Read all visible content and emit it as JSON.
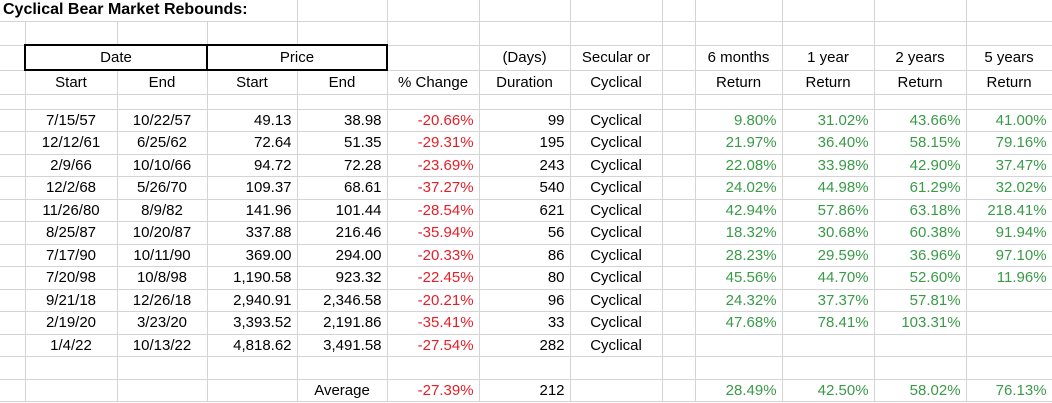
{
  "title": "Cyclical Bear Market Rebounds:",
  "header": {
    "date_group": "Date",
    "price_group": "Price",
    "date_start": "Start",
    "date_end": "End",
    "price_start": "Start",
    "price_end": "End",
    "pct_change": "% Change",
    "days": "(Days)",
    "duration": "Duration",
    "secular_or": "Secular or",
    "cyclical": "Cyclical",
    "m6": "6 months",
    "y1": "1 year",
    "y2": "2 years",
    "y5": "5 years",
    "return": "Return"
  },
  "rows": [
    {
      "date_start": "7/15/57",
      "date_end": "10/22/57",
      "price_start": "49.13",
      "price_end": "38.98",
      "pct_change": "-20.66%",
      "duration": "99",
      "type": "Cyclical",
      "return_6m": "9.80%",
      "return_1y": "31.02%",
      "return_2y": "43.66%",
      "return_5y": "41.00%"
    },
    {
      "date_start": "12/12/61",
      "date_end": "6/25/62",
      "price_start": "72.64",
      "price_end": "51.35",
      "pct_change": "-29.31%",
      "duration": "195",
      "type": "Cyclical",
      "return_6m": "21.97%",
      "return_1y": "36.40%",
      "return_2y": "58.15%",
      "return_5y": "79.16%"
    },
    {
      "date_start": "2/9/66",
      "date_end": "10/10/66",
      "price_start": "94.72",
      "price_end": "72.28",
      "pct_change": "-23.69%",
      "duration": "243",
      "type": "Cyclical",
      "return_6m": "22.08%",
      "return_1y": "33.98%",
      "return_2y": "42.90%",
      "return_5y": "37.47%"
    },
    {
      "date_start": "12/2/68",
      "date_end": "5/26/70",
      "price_start": "109.37",
      "price_end": "68.61",
      "pct_change": "-37.27%",
      "duration": "540",
      "type": "Cyclical",
      "return_6m": "24.02%",
      "return_1y": "44.98%",
      "return_2y": "61.29%",
      "return_5y": "32.02%"
    },
    {
      "date_start": "11/26/80",
      "date_end": "8/9/82",
      "price_start": "141.96",
      "price_end": "101.44",
      "pct_change": "-28.54%",
      "duration": "621",
      "type": "Cyclical",
      "return_6m": "42.94%",
      "return_1y": "57.86%",
      "return_2y": "63.18%",
      "return_5y": "218.41%"
    },
    {
      "date_start": "8/25/87",
      "date_end": "10/20/87",
      "price_start": "337.88",
      "price_end": "216.46",
      "pct_change": "-35.94%",
      "duration": "56",
      "type": "Cyclical",
      "return_6m": "18.32%",
      "return_1y": "30.68%",
      "return_2y": "60.38%",
      "return_5y": "91.94%"
    },
    {
      "date_start": "7/17/90",
      "date_end": "10/11/90",
      "price_start": "369.00",
      "price_end": "294.00",
      "pct_change": "-20.33%",
      "duration": "86",
      "type": "Cyclical",
      "return_6m": "28.23%",
      "return_1y": "29.59%",
      "return_2y": "36.96%",
      "return_5y": "97.10%"
    },
    {
      "date_start": "7/20/98",
      "date_end": "10/8/98",
      "price_start": "1,190.58",
      "price_end": "923.32",
      "pct_change": "-22.45%",
      "duration": "80",
      "type": "Cyclical",
      "return_6m": "45.56%",
      "return_1y": "44.70%",
      "return_2y": "52.60%",
      "return_5y": "11.96%"
    },
    {
      "date_start": "9/21/18",
      "date_end": "12/26/18",
      "price_start": "2,940.91",
      "price_end": "2,346.58",
      "pct_change": "-20.21%",
      "duration": "96",
      "type": "Cyclical",
      "return_6m": "24.32%",
      "return_1y": "37.37%",
      "return_2y": "57.81%"
    },
    {
      "date_start": "2/19/20",
      "date_end": "3/23/20",
      "price_start": "3,393.52",
      "price_end": "2,191.86",
      "pct_change": "-35.41%",
      "duration": "33",
      "type": "Cyclical",
      "return_6m": "47.68%",
      "return_1y": "78.41%",
      "return_2y": "103.31%"
    },
    {
      "date_start": "1/4/22",
      "date_end": "10/13/22",
      "price_start": "4,818.62",
      "price_end": "3,491.58",
      "pct_change": "-27.54%",
      "duration": "282",
      "type": "Cyclical"
    }
  ],
  "average": {
    "label": "Average",
    "pct_change": "-27.39%",
    "duration": "212",
    "return_6m": "28.49%",
    "return_1y": "42.50%",
    "return_2y": "58.02%",
    "return_5y": "76.13%"
  },
  "colors": {
    "negative": "#e41f28",
    "positive": "#3a9a48",
    "gridline": "#d4d4d4"
  }
}
